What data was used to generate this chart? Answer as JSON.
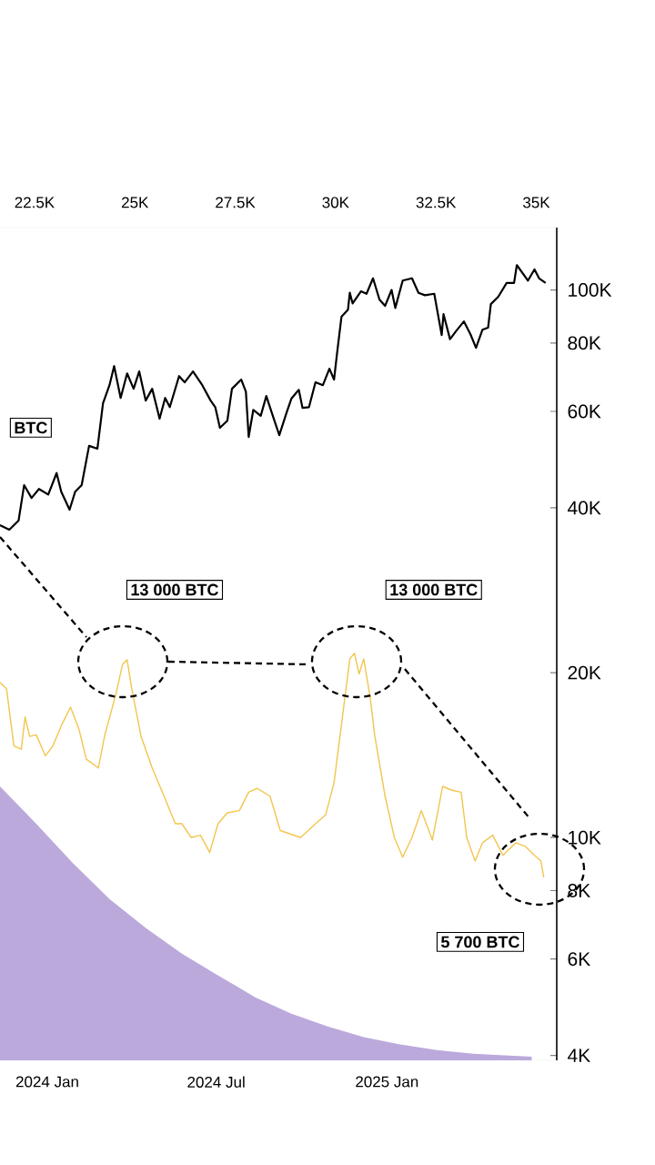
{
  "chart_data": {
    "type": "line",
    "xlim": [
      "2023-11-11",
      "2025-07-03"
    ],
    "xticks": [
      {
        "value": "2024-01-01",
        "label": "2024 Jan"
      },
      {
        "value": "2024-07-01",
        "label": "2024 Jul"
      },
      {
        "value": "2025-01-01",
        "label": "2025 Jan"
      }
    ],
    "x2lim": [
      21640,
      35510
    ],
    "x2ticks": [
      {
        "value": 22500,
        "label": "22.5K"
      },
      {
        "value": 25000,
        "label": "25K"
      },
      {
        "value": 27500,
        "label": "27.5K"
      },
      {
        "value": 30000,
        "label": "30K"
      },
      {
        "value": 32500,
        "label": "32.5K"
      },
      {
        "value": 35000,
        "label": "35K"
      }
    ],
    "log": true,
    "ylim": [
      3920,
      130000
    ],
    "yticks": [
      {
        "value": 4000,
        "label": "4K"
      },
      {
        "value": 6000,
        "label": "6K"
      },
      {
        "value": 8000,
        "label": "8K"
      },
      {
        "value": 10000,
        "label": "10K"
      },
      {
        "value": 20000,
        "label": "20K"
      },
      {
        "value": 40000,
        "label": "40K"
      },
      {
        "value": 60000,
        "label": "60K"
      },
      {
        "value": 80000,
        "label": "80K"
      },
      {
        "value": 100000,
        "label": "100K"
      }
    ],
    "series": [
      {
        "type": "area",
        "color": "#bba9dc",
        "x": [
          "2023-11-11",
          "2023-12-20",
          "2024-01-28",
          "2024-03-08",
          "2024-04-16",
          "2024-05-25",
          "2024-07-03",
          "2024-08-12",
          "2024-09-20",
          "2024-10-29",
          "2024-12-07",
          "2025-01-15",
          "2025-02-24",
          "2025-04-04",
          "2025-06-06"
        ],
        "values": [
          12400,
          10600,
          9000,
          7720,
          6840,
          6140,
          5600,
          5110,
          4770,
          4520,
          4320,
          4190,
          4090,
          4030,
          3980
        ]
      },
      {
        "color": "#f2c54e",
        "x": [
          "2023-11-11",
          "2023-11-18",
          "2023-11-26",
          "2023-12-04",
          "2023-12-08",
          "2023-12-13",
          "2023-12-20",
          "2023-12-30",
          "2024-01-07",
          "2024-01-16",
          "2024-01-26",
          "2024-02-04",
          "2024-02-12",
          "2024-02-25",
          "2024-03-03",
          "2024-03-15",
          "2024-03-22",
          "2024-03-27",
          "2024-04-01",
          "2024-04-11",
          "2024-04-23",
          "2024-05-04",
          "2024-05-18",
          "2024-05-25",
          "2024-06-04",
          "2024-06-14",
          "2024-06-24",
          "2024-07-03",
          "2024-07-13",
          "2024-07-26",
          "2024-08-05",
          "2024-08-14",
          "2024-08-28",
          "2024-09-08",
          "2024-09-30",
          "2024-10-16",
          "2024-10-27",
          "2024-11-05",
          "2024-11-15",
          "2024-11-22",
          "2024-11-27",
          "2024-12-02",
          "2024-12-07",
          "2024-12-14",
          "2024-12-19",
          "2024-12-30",
          "2025-01-09",
          "2025-01-18",
          "2025-01-28",
          "2025-02-07",
          "2025-02-19",
          "2025-03-02",
          "2025-03-12",
          "2025-03-22",
          "2025-03-28",
          "2025-04-06",
          "2025-04-14",
          "2025-04-25",
          "2025-05-06",
          "2025-05-20",
          "2025-05-30",
          "2025-06-09",
          "2025-06-16",
          "2025-06-19"
        ],
        "values": [
          19200,
          18700,
          14700,
          14500,
          16600,
          15300,
          15400,
          14100,
          14700,
          16000,
          17300,
          15800,
          13900,
          13400,
          15400,
          18300,
          20700,
          21100,
          18700,
          15300,
          13400,
          12100,
          10600,
          10600,
          10000,
          10100,
          9390,
          10600,
          11100,
          11200,
          12100,
          12300,
          11900,
          10300,
          10000,
          10600,
          11000,
          12600,
          17100,
          21200,
          21700,
          19900,
          21200,
          18000,
          15300,
          11900,
          10000,
          9210,
          10000,
          11200,
          9890,
          12400,
          12200,
          12100,
          10000,
          9060,
          9780,
          10100,
          9280,
          9780,
          9640,
          9280,
          9060,
          8450
        ]
      },
      {
        "color": "#000000",
        "x": [
          "2023-11-11",
          "2023-11-21",
          "2023-12-01",
          "2023-12-07",
          "2023-12-15",
          "2023-12-23",
          "2024-01-02",
          "2024-01-11",
          "2024-01-16",
          "2024-01-25",
          "2024-01-31",
          "2024-02-07",
          "2024-02-15",
          "2024-02-24",
          "2024-03-01",
          "2024-03-08",
          "2024-03-13",
          "2024-03-20",
          "2024-03-27",
          "2024-04-03",
          "2024-04-09",
          "2024-04-16",
          "2024-04-23",
          "2024-05-01",
          "2024-05-07",
          "2024-05-12",
          "2024-05-22",
          "2024-05-28",
          "2024-06-06",
          "2024-06-16",
          "2024-06-25",
          "2024-06-30",
          "2024-07-05",
          "2024-07-13",
          "2024-07-18",
          "2024-07-28",
          "2024-08-02",
          "2024-08-05",
          "2024-08-10",
          "2024-08-18",
          "2024-08-24",
          "2024-08-31",
          "2024-09-07",
          "2024-09-15",
          "2024-09-20",
          "2024-09-28",
          "2024-10-02",
          "2024-10-09",
          "2024-10-16",
          "2024-10-24",
          "2024-10-31",
          "2024-11-05",
          "2024-11-08",
          "2024-11-13",
          "2024-11-20",
          "2024-11-22",
          "2024-11-25",
          "2024-12-04",
          "2024-12-10",
          "2024-12-17",
          "2024-12-24",
          "2024-12-30",
          "2025-01-06",
          "2025-01-10",
          "2025-01-18",
          "2025-01-28",
          "2025-02-04",
          "2025-02-11",
          "2025-02-21",
          "2025-03-01",
          "2025-03-03",
          "2025-03-10",
          "2025-03-17",
          "2025-03-25",
          "2025-04-01",
          "2025-04-07",
          "2025-04-14",
          "2025-04-20",
          "2025-04-23",
          "2025-05-01",
          "2025-05-10",
          "2025-05-18",
          "2025-05-21",
          "2025-06-02",
          "2025-06-09",
          "2025-06-14",
          "2025-06-21"
        ],
        "values": [
          37200,
          36500,
          37900,
          44000,
          41700,
          43300,
          42300,
          46300,
          42800,
          39700,
          42800,
          44000,
          51900,
          51300,
          62100,
          67000,
          72600,
          63500,
          70400,
          66000,
          71000,
          62800,
          66000,
          58200,
          63500,
          61100,
          69600,
          67800,
          71000,
          67000,
          62800,
          61100,
          56000,
          57700,
          66000,
          68600,
          65200,
          53900,
          60400,
          58900,
          64000,
          58900,
          54300,
          59800,
          63300,
          65700,
          60900,
          61100,
          67800,
          67000,
          71800,
          68600,
          76000,
          89300,
          92000,
          98800,
          94500,
          99400,
          98400,
          105000,
          96000,
          93500,
          100000,
          92700,
          104000,
          105000,
          98800,
          97800,
          98400,
          82700,
          90300,
          81300,
          84300,
          87600,
          83000,
          78400,
          84600,
          85300,
          94200,
          97200,
          103000,
          103000,
          111000,
          104000,
          109000,
          105000,
          103000
        ]
      }
    ],
    "annotations": [
      "BTC",
      "13 000 BTC",
      "13 000 BTC",
      "5 700 BTC"
    ]
  }
}
